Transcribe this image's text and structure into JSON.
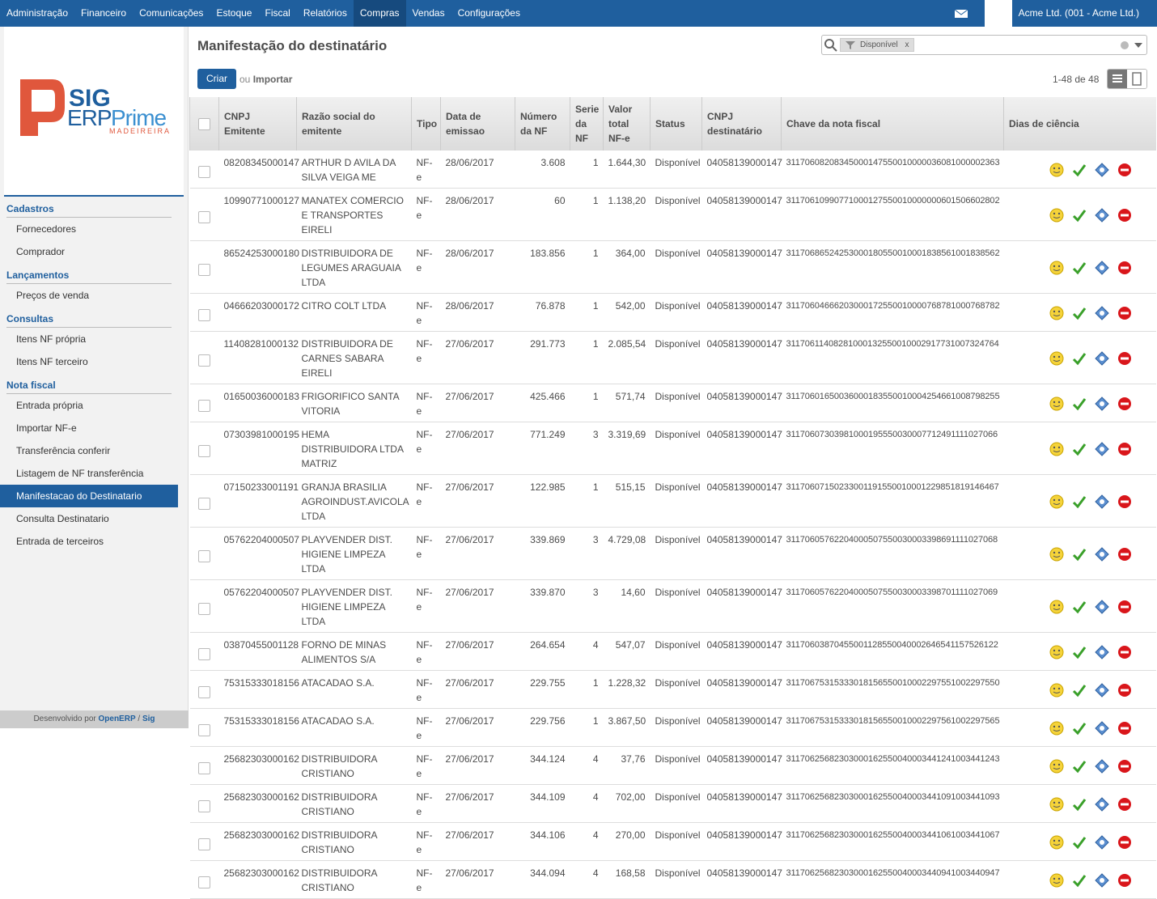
{
  "nav": {
    "items": [
      "Administração",
      "Financeiro",
      "Comunicações",
      "Estoque",
      "Fiscal",
      "Relatórios",
      "Compras",
      "Vendas",
      "Configurações"
    ],
    "active": 6,
    "company": "Acme Ltd. (001 - Acme Ltd.)"
  },
  "logo": {
    "sig": "SIG",
    "erp": "ERP",
    "prime": "Prime",
    "sub": "MADEIREIRA"
  },
  "sidebar": {
    "sections": [
      {
        "title": "Cadastros",
        "items": [
          "Fornecedores",
          "Comprador"
        ]
      },
      {
        "title": "Lançamentos",
        "items": [
          "Preços de venda"
        ]
      },
      {
        "title": "Consultas",
        "items": [
          "Itens NF própria",
          "Itens NF terceiro"
        ]
      },
      {
        "title": "Nota fiscal",
        "items": [
          "Entrada própria",
          "Importar NF-e",
          "Transferência conferir",
          "Listagem de NF transferência",
          "Manifestacao do Destinatario",
          "Consulta Destinatario",
          "Entrada de terceiros"
        ]
      }
    ],
    "active": "Manifestacao do Destinatario",
    "footer": {
      "text": "Desenvolvido por",
      "openerp": "OpenERP",
      "sep": "/",
      "sig": "Sig"
    }
  },
  "header": {
    "title": "Manifestação do destinatário",
    "facet": "Disponível",
    "facet_remove": "x",
    "create": "Criar",
    "or": "ou",
    "import": "Importar",
    "pager": "1-48 de 48"
  },
  "table": {
    "columns": [
      "CNPJ Emitente",
      "Razão social do emitente",
      "Tipo",
      "Data de emissao",
      "Número da NF",
      "Serie da NF",
      "Valor total NF-e",
      "Status",
      "CNPJ destinatário",
      "Chave da nota fiscal",
      "Dias de ciência"
    ],
    "rows": [
      [
        "08208345000147",
        "ARTHUR D AVILA DA SILVA VEIGA ME",
        "NF-e",
        "28/06/2017",
        "3.608",
        "1",
        "1.644,30",
        "Disponível",
        "04058139000147",
        "31170608208345000147550010000036081000002363"
      ],
      [
        "10990771000127",
        "MANATEX COMERCIO E TRANSPORTES EIRELI",
        "NF-e",
        "28/06/2017",
        "60",
        "1",
        "1.138,20",
        "Disponível",
        "04058139000147",
        "31170610990771000127550010000000601506602802"
      ],
      [
        "86524253000180",
        "DISTRIBUIDORA DE LEGUMES ARAGUAIA LTDA",
        "NF-e",
        "28/06/2017",
        "183.856",
        "1",
        "364,00",
        "Disponível",
        "04058139000147",
        "31170686524253000180550010001838561001838562"
      ],
      [
        "04666203000172",
        "CITRO COLT LTDA",
        "NF-e",
        "28/06/2017",
        "76.878",
        "1",
        "542,00",
        "Disponível",
        "04058139000147",
        "31170604666203000172550010000768781000768782"
      ],
      [
        "11408281000132",
        "DISTRIBUIDORA DE CARNES SABARA EIRELI",
        "NF-e",
        "27/06/2017",
        "291.773",
        "1",
        "2.085,54",
        "Disponível",
        "04058139000147",
        "31170611408281000132550010002917731007324764"
      ],
      [
        "01650036000183",
        "FRIGORIFICO SANTA VITORIA",
        "NF-e",
        "27/06/2017",
        "425.466",
        "1",
        "571,74",
        "Disponível",
        "04058139000147",
        "31170601650036000183550010004254661008798255"
      ],
      [
        "07303981000195",
        "HEMA DISTRIBUIDORA LTDA MATRIZ",
        "NF-e",
        "27/06/2017",
        "771.249",
        "3",
        "3.319,69",
        "Disponível",
        "04058139000147",
        "31170607303981000195550030007712491111027066"
      ],
      [
        "07150233001191",
        "GRANJA BRASILIA AGROINDUST.AVICOLA LTDA",
        "NF-e",
        "27/06/2017",
        "122.985",
        "1",
        "515,15",
        "Disponível",
        "04058139000147",
        "31170607150233001191550010001229851819146467"
      ],
      [
        "05762204000507",
        "PLAYVENDER DIST. HIGIENE LIMPEZA LTDA",
        "NF-e",
        "27/06/2017",
        "339.869",
        "3",
        "4.729,08",
        "Disponível",
        "04058139000147",
        "31170605762204000507550030003398691111027068"
      ],
      [
        "05762204000507",
        "PLAYVENDER DIST. HIGIENE LIMPEZA LTDA",
        "NF-e",
        "27/06/2017",
        "339.870",
        "3",
        "14,60",
        "Disponível",
        "04058139000147",
        "31170605762204000507550030003398701111027069"
      ],
      [
        "03870455001128",
        "FORNO DE MINAS ALIMENTOS S/A",
        "NF-e",
        "27/06/2017",
        "264.654",
        "4",
        "547,07",
        "Disponível",
        "04058139000147",
        "31170603870455001128550040002646541157526122"
      ],
      [
        "75315333018156",
        "ATACADAO S.A.",
        "NF-e",
        "27/06/2017",
        "229.755",
        "1",
        "1.228,32",
        "Disponível",
        "04058139000147",
        "31170675315333018156550010002297551002297550"
      ],
      [
        "75315333018156",
        "ATACADAO S.A.",
        "NF-e",
        "27/06/2017",
        "229.756",
        "1",
        "3.867,50",
        "Disponível",
        "04058139000147",
        "31170675315333018156550010002297561002297565"
      ],
      [
        "25682303000162",
        "DISTRIBUIDORA CRISTIANO",
        "NF-e",
        "27/06/2017",
        "344.124",
        "4",
        "37,76",
        "Disponível",
        "04058139000147",
        "31170625682303000162550040003441241003441243"
      ],
      [
        "25682303000162",
        "DISTRIBUIDORA CRISTIANO",
        "NF-e",
        "27/06/2017",
        "344.109",
        "4",
        "702,00",
        "Disponível",
        "04058139000147",
        "31170625682303000162550040003441091003441093"
      ],
      [
        "25682303000162",
        "DISTRIBUIDORA CRISTIANO",
        "NF-e",
        "27/06/2017",
        "344.106",
        "4",
        "270,00",
        "Disponível",
        "04058139000147",
        "31170625682303000162550040003441061003441067"
      ],
      [
        "25682303000162",
        "DISTRIBUIDORA CRISTIANO",
        "NF-e",
        "27/06/2017",
        "344.094",
        "4",
        "168,58",
        "Disponível",
        "04058139000147",
        "31170625682303000162550040003440941003440947"
      ]
    ]
  }
}
